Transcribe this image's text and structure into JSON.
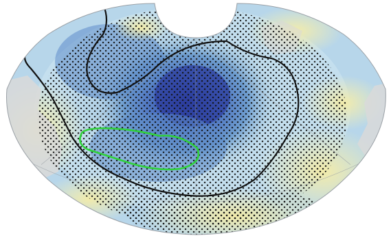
{
  "map": {
    "projection": "polar-conic-sector",
    "colors": {
      "background": "#ffffff",
      "ocean_base": "#a9cde4",
      "land": "#d6d6d6",
      "anomaly_positive": "#f5f0b4",
      "anomaly_weak_negative": "#c8e2ef",
      "anomaly_negative": "#6f9ed0",
      "anomaly_strong_negative": "#4a6fc0",
      "anomaly_peak": "#2a3a9e",
      "contour_black": "#111111",
      "contour_green": "#2fd13a",
      "stipple": "#111111",
      "graticule": "#9aa0a6"
    },
    "layers": [
      {
        "name": "shaded-anomaly-field"
      },
      {
        "name": "land-mask"
      },
      {
        "name": "significance-stippling"
      },
      {
        "name": "black-contours"
      },
      {
        "name": "green-contour"
      },
      {
        "name": "graticule"
      }
    ]
  }
}
